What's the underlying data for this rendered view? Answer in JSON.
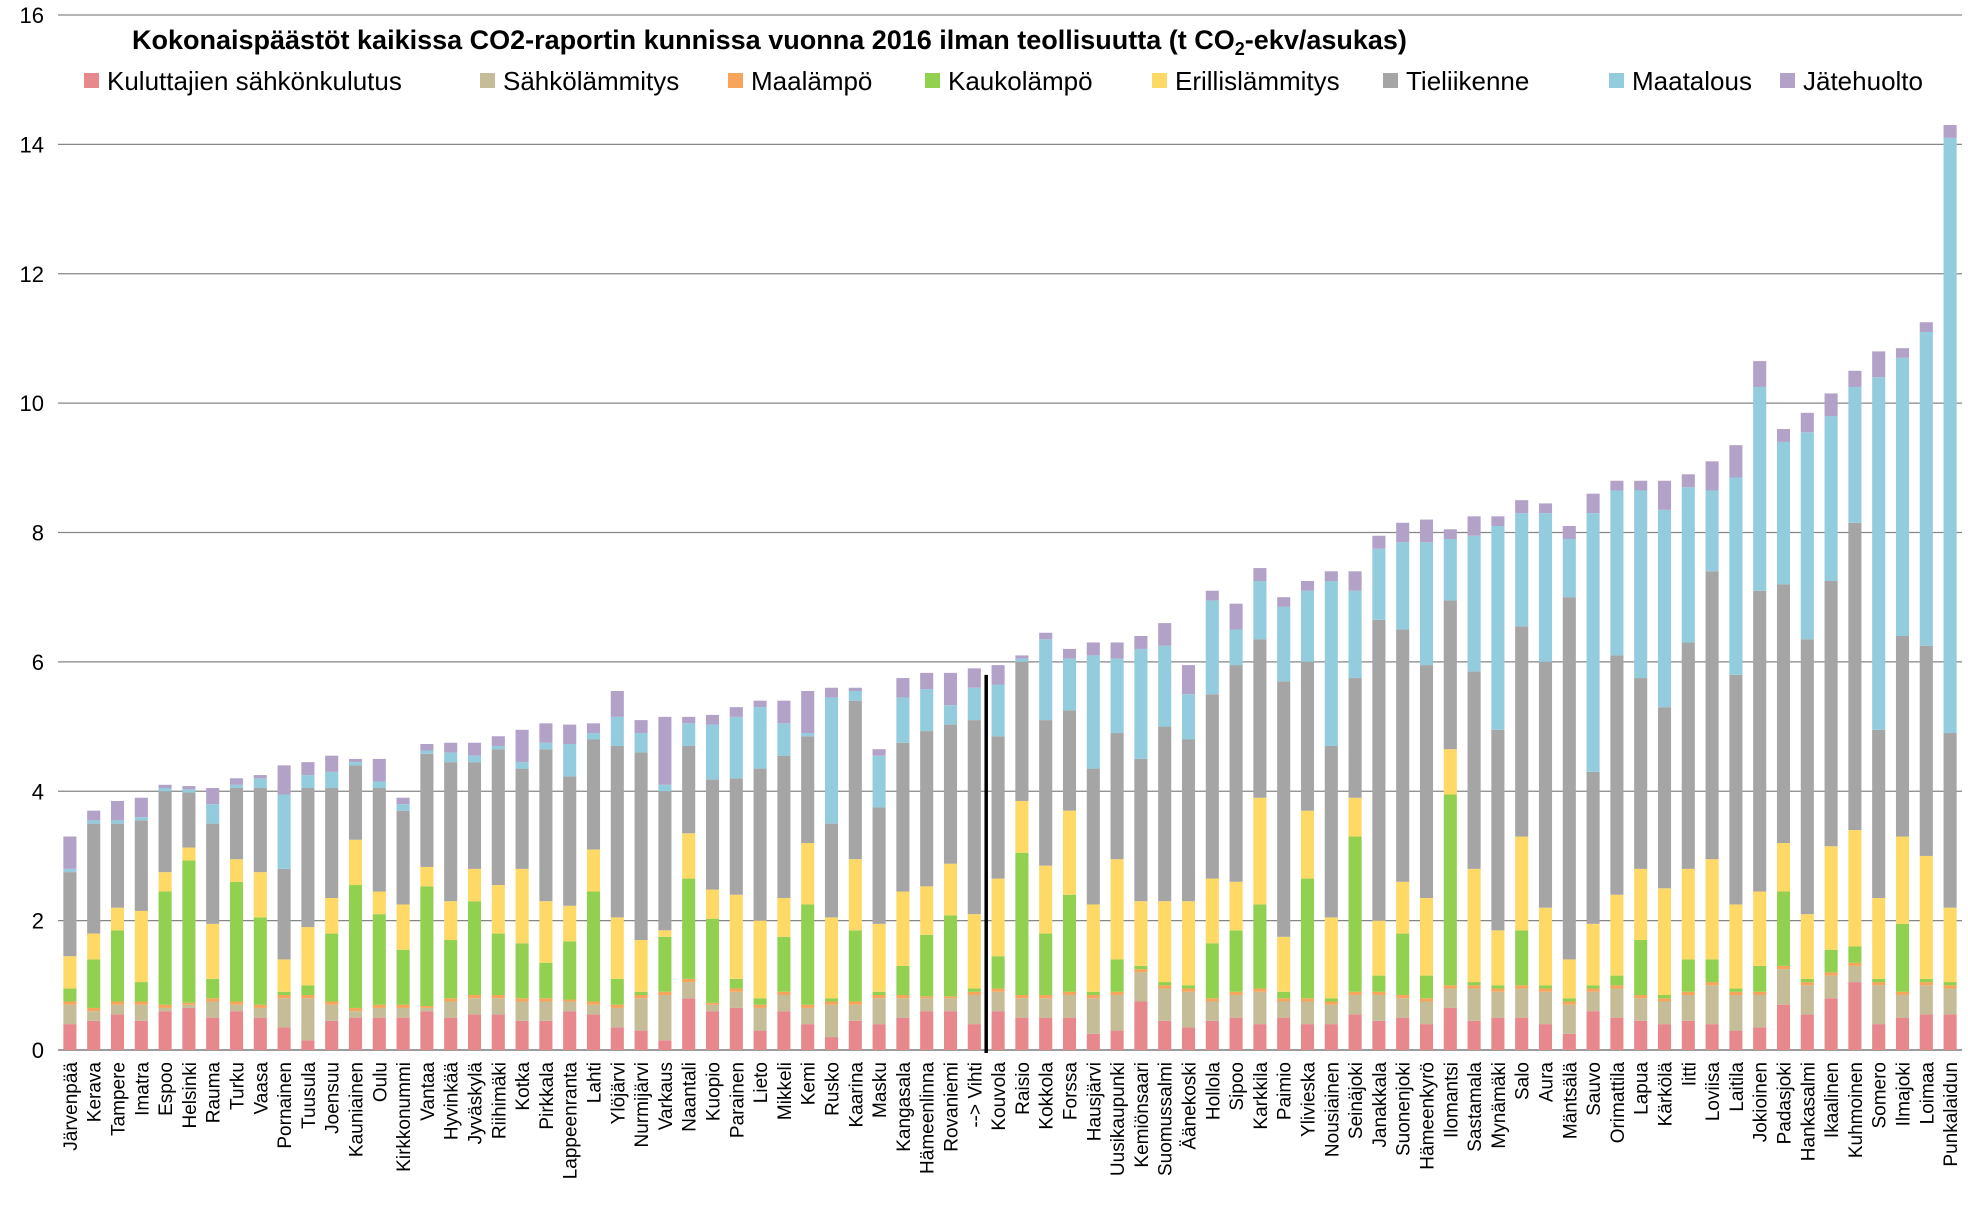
{
  "chart_data": {
    "type": "bar",
    "stacked": true,
    "title": "Kokonaispäästöt kaikissa CO2-raportin kunnissa vuonna 2016 ilman teollisuutta (t CO2-ekv/asukas)",
    "title_main": "Kokonaispäästöt kaikissa CO2-raportin kunnissa vuonna 2016 ilman teollisuutta (t CO",
    "title_sub": "2",
    "title_end": "-ekv/asukas)",
    "xlabel": "",
    "ylabel": "",
    "ylim": [
      0,
      16
    ],
    "yticks": [
      0,
      2,
      4,
      6,
      8,
      10,
      12,
      14,
      16
    ],
    "grid": true,
    "legend_position": "top",
    "divider_after": "--> Vihti",
    "categories": [
      "Järvenpää",
      "Kerava",
      "Tampere",
      "Imatra",
      "Espoo",
      "Helsinki",
      "Rauma",
      "Turku",
      "Vaasa",
      "Pornainen",
      "Tuusula",
      "Joensuu",
      "Kauniainen",
      "Oulu",
      "Kirkkonummi",
      "Vantaa",
      "Hyvinkää",
      "Jyväskylä",
      "Riihimäki",
      "Kotka",
      "Pirkkala",
      "Lappeenranta",
      "Lahti",
      "Ylöjärvi",
      "Nurmijärvi",
      "Varkaus",
      "Naantali",
      "Kuopio",
      "Parainen",
      "Lieto",
      "Mikkeli",
      "Kemi",
      "Rusko",
      "Kaarina",
      "Masku",
      "Kangasala",
      "Hämeenlinna",
      "Rovaniemi",
      "--> Vihti",
      "Kouvola",
      "Raisio",
      "Kokkola",
      "Forssa",
      "Hausjärvi",
      "Uusikaupunki",
      "Kemiönsaari",
      "Suomussalmi",
      "Äänekoski",
      "Hollola",
      "Sipoo",
      "Karkkila",
      "Paimio",
      "Ylivieska",
      "Nousiainen",
      "Seinäjoki",
      "Janakkala",
      "Suonenjoki",
      "Hämeenkyrö",
      "Ilomantsi",
      "Sastamala",
      "Mynämäki",
      "Salo",
      "Aura",
      "Mäntsälä",
      "Sauvo",
      "Orimattila",
      "Lapua",
      "Kärkölä",
      "Iitti",
      "Loviisa",
      "Laitila",
      "Jokioinen",
      "Padasjoki",
      "Hankasalmi",
      "Ikaalinen",
      "Kuhmoinen",
      "Somero",
      "Ilmajoki",
      "Loimaa",
      "Punkalaidun"
    ],
    "series": [
      {
        "name": "Kuluttajien sähkönkulutus",
        "color": "#e6888c",
        "values": [
          0.4,
          0.45,
          0.55,
          0.45,
          0.6,
          0.65,
          0.5,
          0.6,
          0.5,
          0.35,
          0.15,
          0.45,
          0.5,
          0.5,
          0.5,
          0.6,
          0.5,
          0.55,
          0.55,
          0.45,
          0.45,
          0.6,
          0.55,
          0.35,
          0.3,
          0.15,
          0.8,
          0.6,
          0.65,
          0.3,
          0.6,
          0.4,
          0.2,
          0.45,
          0.4,
          0.5,
          0.6,
          0.6,
          0.4,
          0.6,
          0.5,
          0.5,
          0.5,
          0.25,
          0.3,
          0.75,
          0.45,
          0.35,
          0.45,
          0.5,
          0.4,
          0.5,
          0.4,
          0.4,
          0.55,
          0.45,
          0.5,
          0.4,
          0.65,
          0.45,
          0.5,
          0.5,
          0.4,
          0.25,
          0.6,
          0.5,
          0.45,
          0.4,
          0.45,
          0.4,
          0.3,
          0.35,
          0.7,
          0.55,
          0.8,
          1.05,
          0.4,
          0.5,
          0.55,
          0.55
        ]
      },
      {
        "name": "Sähkölämmitys",
        "color": "#c4bd97",
        "values": [
          0.3,
          0.15,
          0.15,
          0.25,
          0.05,
          0.05,
          0.25,
          0.1,
          0.15,
          0.45,
          0.65,
          0.25,
          0.1,
          0.15,
          0.15,
          0.05,
          0.25,
          0.25,
          0.25,
          0.3,
          0.3,
          0.15,
          0.15,
          0.3,
          0.5,
          0.7,
          0.25,
          0.1,
          0.25,
          0.35,
          0.25,
          0.25,
          0.5,
          0.25,
          0.4,
          0.3,
          0.2,
          0.2,
          0.45,
          0.3,
          0.3,
          0.3,
          0.35,
          0.55,
          0.55,
          0.45,
          0.5,
          0.55,
          0.3,
          0.35,
          0.5,
          0.25,
          0.35,
          0.3,
          0.3,
          0.4,
          0.3,
          0.35,
          0.3,
          0.5,
          0.4,
          0.45,
          0.5,
          0.45,
          0.3,
          0.45,
          0.35,
          0.35,
          0.4,
          0.6,
          0.55,
          0.5,
          0.55,
          0.45,
          0.35,
          0.25,
          0.6,
          0.35,
          0.45,
          0.4
        ]
      },
      {
        "name": "Maalämpö",
        "color": "#f8a55c",
        "values": [
          0.05,
          0.05,
          0.05,
          0.05,
          0.05,
          0.03,
          0.05,
          0.05,
          0.05,
          0.05,
          0.05,
          0.05,
          0.05,
          0.05,
          0.05,
          0.03,
          0.05,
          0.05,
          0.05,
          0.05,
          0.05,
          0.03,
          0.05,
          0.05,
          0.05,
          0.05,
          0.05,
          0.03,
          0.05,
          0.05,
          0.05,
          0.05,
          0.05,
          0.05,
          0.05,
          0.05,
          0.03,
          0.03,
          0.05,
          0.05,
          0.05,
          0.05,
          0.05,
          0.05,
          0.05,
          0.05,
          0.05,
          0.05,
          0.05,
          0.05,
          0.05,
          0.05,
          0.05,
          0.05,
          0.05,
          0.05,
          0.05,
          0.05,
          0.05,
          0.05,
          0.05,
          0.05,
          0.05,
          0.05,
          0.05,
          0.05,
          0.05,
          0.05,
          0.05,
          0.05,
          0.05,
          0.05,
          0.05,
          0.05,
          0.05,
          0.05,
          0.05,
          0.05,
          0.05,
          0.05
        ]
      },
      {
        "name": "Kaukolämpö",
        "color": "#92d050",
        "values": [
          0.2,
          0.75,
          1.1,
          0.3,
          1.75,
          2.2,
          0.3,
          1.85,
          1.35,
          0.05,
          0.15,
          1.05,
          1.9,
          1.4,
          0.85,
          1.85,
          0.9,
          1.45,
          0.95,
          0.85,
          0.55,
          0.9,
          1.7,
          0.4,
          0.05,
          0.85,
          1.55,
          1.3,
          0.15,
          0.1,
          0.85,
          1.55,
          0.05,
          1.1,
          0.05,
          0.45,
          0.95,
          1.25,
          0.05,
          0.5,
          2.2,
          0.95,
          1.5,
          0.05,
          0.5,
          0.05,
          0.05,
          0.05,
          0.85,
          0.95,
          1.3,
          0.1,
          1.85,
          0.05,
          2.4,
          0.25,
          0.95,
          0.35,
          2.95,
          0.05,
          0.05,
          0.85,
          0.05,
          0.05,
          0.05,
          0.15,
          0.85,
          0.05,
          0.5,
          0.35,
          0.05,
          0.4,
          1.15,
          0.05,
          0.35,
          0.25,
          0.05,
          1.05,
          0.05,
          0.05
        ]
      },
      {
        "name": "Erillislämmitys",
        "color": "#fed966",
        "values": [
          0.5,
          0.4,
          0.35,
          1.1,
          0.3,
          0.2,
          0.85,
          0.35,
          0.7,
          0.5,
          0.9,
          0.55,
          0.7,
          0.35,
          0.7,
          0.3,
          0.6,
          0.5,
          0.75,
          1.15,
          0.95,
          0.55,
          0.65,
          0.95,
          0.8,
          0.1,
          0.7,
          0.45,
          1.3,
          1.2,
          0.6,
          0.95,
          1.25,
          1.1,
          1.05,
          1.15,
          0.75,
          0.8,
          1.15,
          1.2,
          0.8,
          1.05,
          1.3,
          1.35,
          1.55,
          1.0,
          1.25,
          1.3,
          1.0,
          0.75,
          1.65,
          0.85,
          1.05,
          1.25,
          0.6,
          0.85,
          0.8,
          1.2,
          0.7,
          1.75,
          0.85,
          1.45,
          1.2,
          0.6,
          0.95,
          1.25,
          1.1,
          1.65,
          1.4,
          1.55,
          1.3,
          1.15,
          0.75,
          1.0,
          1.6,
          1.8,
          1.25,
          1.35,
          1.9,
          1.15
        ]
      },
      {
        "name": "Tieliikenne",
        "color": "#a5a5a5",
        "values": [
          1.3,
          1.7,
          1.3,
          1.4,
          1.25,
          0.85,
          1.55,
          1.1,
          1.3,
          1.4,
          2.15,
          1.7,
          1.15,
          1.6,
          1.45,
          1.75,
          2.15,
          1.65,
          2.1,
          1.55,
          2.35,
          2.0,
          1.7,
          2.65,
          2.9,
          2.15,
          1.35,
          1.7,
          1.8,
          2.35,
          2.2,
          1.65,
          1.45,
          2.45,
          1.8,
          2.3,
          2.4,
          2.15,
          3.0,
          2.2,
          2.15,
          2.25,
          1.55,
          2.1,
          1.95,
          2.2,
          2.7,
          2.5,
          2.85,
          3.35,
          2.45,
          3.95,
          2.3,
          2.65,
          1.85,
          4.65,
          3.9,
          3.6,
          2.3,
          3.05,
          3.1,
          3.25,
          3.8,
          5.6,
          2.35,
          3.7,
          2.95,
          2.8,
          3.5,
          4.45,
          3.55,
          4.65,
          4.0,
          4.25,
          4.1,
          4.75,
          2.6,
          3.1,
          3.25,
          2.7
        ]
      },
      {
        "name": "Maatalous",
        "color": "#93cddd",
        "values": [
          0.05,
          0.05,
          0.05,
          0.05,
          0.05,
          0.05,
          0.3,
          0.05,
          0.15,
          1.15,
          0.2,
          0.25,
          0.05,
          0.1,
          0.1,
          0.05,
          0.15,
          0.1,
          0.05,
          0.1,
          0.1,
          0.5,
          0.1,
          0.45,
          0.3,
          0.1,
          0.35,
          0.85,
          0.95,
          0.95,
          0.5,
          0.05,
          1.95,
          0.15,
          0.8,
          0.7,
          0.65,
          0.3,
          0.5,
          0.8,
          0.05,
          1.25,
          0.8,
          1.75,
          1.15,
          1.7,
          1.25,
          0.7,
          1.45,
          0.55,
          0.9,
          1.15,
          1.1,
          2.55,
          1.35,
          1.1,
          1.35,
          1.9,
          0.95,
          2.1,
          3.15,
          1.75,
          2.3,
          0.9,
          4.0,
          2.55,
          2.9,
          3.05,
          2.4,
          1.25,
          3.05,
          3.15,
          2.2,
          3.2,
          2.55,
          2.1,
          5.45,
          4.3,
          4.85,
          9.2
        ]
      },
      {
        "name": "Jätehuolto",
        "color": "#b3a2c7",
        "values": [
          0.5,
          0.15,
          0.3,
          0.3,
          0.05,
          0.05,
          0.25,
          0.1,
          0.05,
          0.45,
          0.2,
          0.25,
          0.05,
          0.35,
          0.1,
          0.1,
          0.15,
          0.2,
          0.15,
          0.5,
          0.3,
          0.3,
          0.15,
          0.4,
          0.2,
          1.05,
          0.1,
          0.15,
          0.15,
          0.1,
          0.35,
          0.65,
          0.15,
          0.05,
          0.1,
          0.3,
          0.25,
          0.5,
          0.3,
          0.3,
          0.05,
          0.1,
          0.15,
          0.2,
          0.25,
          0.2,
          0.35,
          0.45,
          0.15,
          0.4,
          0.2,
          0.15,
          0.15,
          0.15,
          0.3,
          0.2,
          0.3,
          0.35,
          0.15,
          0.3,
          0.15,
          0.2,
          0.15,
          0.2,
          0.3,
          0.15,
          0.15,
          0.45,
          0.2,
          0.45,
          0.5,
          0.4,
          0.2,
          0.3,
          0.35,
          0.25,
          0.4,
          0.15,
          0.15,
          0.2
        ]
      }
    ]
  }
}
